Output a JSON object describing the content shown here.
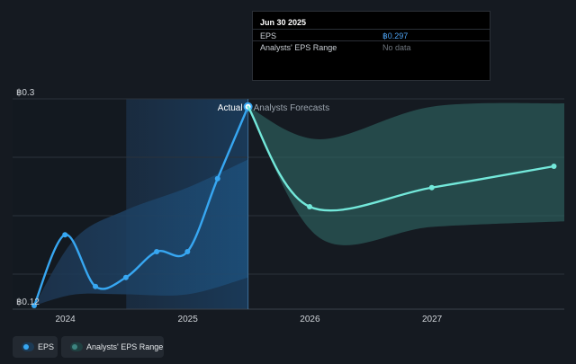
{
  "chart_data": {
    "type": "line",
    "y_tick_labels": [
      "฿0.3",
      "฿0.12"
    ],
    "ylim": [
      0.12,
      0.3
    ],
    "x_tick_labels": [
      "2024",
      "2025",
      "2026",
      "2027"
    ],
    "xlim": [
      "2023-09-30",
      "2028-01-31"
    ],
    "section_labels": {
      "actual": "Actual",
      "forecast": "Analysts Forecasts"
    },
    "series": [
      {
        "name": "EPS",
        "color": "#37a7f2",
        "points": [
          {
            "x": "2023-09-30",
            "y": 0.12
          },
          {
            "x": "2023-12-31",
            "y": 0.183
          },
          {
            "x": "2024-03-31",
            "y": 0.137
          },
          {
            "x": "2024-06-30",
            "y": 0.145
          },
          {
            "x": "2024-09-30",
            "y": 0.168
          },
          {
            "x": "2024-12-31",
            "y": 0.168
          },
          {
            "x": "2025-03-31",
            "y": 0.233
          },
          {
            "x": "2025-06-30",
            "y": 0.297
          }
        ]
      },
      {
        "name": "EPS forecast",
        "color": "#73e8da",
        "points": [
          {
            "x": "2025-06-30",
            "y": 0.297
          },
          {
            "x": "2025-12-31",
            "y": 0.208
          },
          {
            "x": "2026-12-31",
            "y": 0.225
          },
          {
            "x": "2027-12-31",
            "y": 0.244
          }
        ]
      }
    ],
    "ranges": [
      {
        "name": "Analysts' EPS Range",
        "color": "#2f6864",
        "upper": [
          {
            "x": "2025-06-30",
            "y": 0.297
          },
          {
            "x": "2026-01-31",
            "y": 0.268
          },
          {
            "x": "2026-12-31",
            "y": 0.297
          },
          {
            "x": "2028-01-31",
            "y": 0.3
          }
        ],
        "lower": [
          {
            "x": "2025-06-30",
            "y": 0.297
          },
          {
            "x": "2026-01-31",
            "y": 0.18
          },
          {
            "x": "2026-12-31",
            "y": 0.19
          },
          {
            "x": "2028-01-31",
            "y": 0.195
          }
        ]
      }
    ],
    "past_band": {
      "upper": [
        {
          "x": "2023-09-30",
          "y": 0.12
        },
        {
          "x": "2024-01-31",
          "y": 0.18
        },
        {
          "x": "2024-06-30",
          "y": 0.205
        },
        {
          "x": "2024-12-31",
          "y": 0.225
        },
        {
          "x": "2025-06-30",
          "y": 0.25
        }
      ],
      "lower": [
        {
          "x": "2023-09-30",
          "y": 0.12
        },
        {
          "x": "2024-01-31",
          "y": 0.13
        },
        {
          "x": "2024-06-30",
          "y": 0.13
        },
        {
          "x": "2024-12-31",
          "y": 0.13
        },
        {
          "x": "2025-06-30",
          "y": 0.145
        }
      ]
    },
    "highlight_from": "2024-07-01",
    "divider_at": "2025-06-30",
    "grid": true
  },
  "tooltip": {
    "date": "Jun 30 2025",
    "rows": [
      {
        "label": "EPS",
        "value": "฿0.297"
      },
      {
        "label": "Analysts' EPS Range",
        "value": "No data"
      }
    ]
  },
  "legend": {
    "eps_label": "EPS",
    "range_label": "Analysts' EPS Range"
  },
  "colors": {
    "background": "#151a21",
    "eps": "#37a7f2",
    "forecast": "#73e8da",
    "range": "#2f6864"
  }
}
